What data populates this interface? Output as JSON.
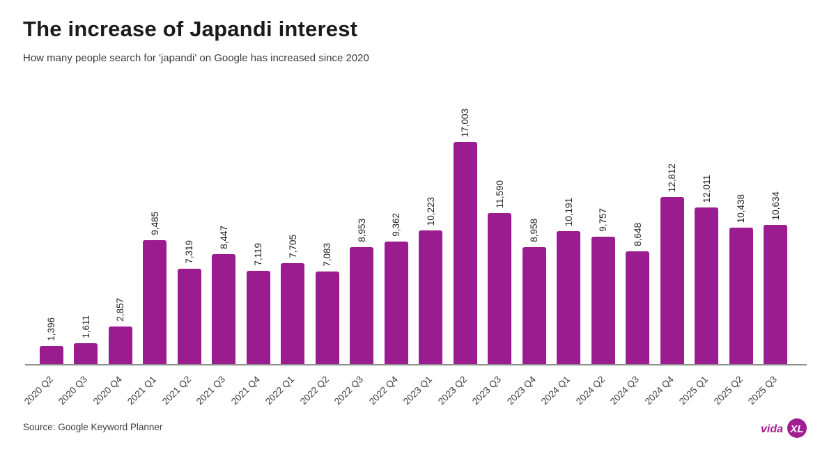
{
  "header": {
    "title": "The increase of Japandi interest",
    "subtitle": "How many people search for 'japandi' on Google has increased since 2020"
  },
  "footer": {
    "source": "Source: Google Keyword Planner",
    "logo_text": "vida",
    "logo_monogram": "XL"
  },
  "colors": {
    "bar": "#9B1C8F",
    "logo": "#A01D92",
    "axis": "#909090"
  },
  "chart_data": {
    "type": "bar",
    "title": "The increase of Japandi interest",
    "xlabel": "",
    "ylabel": "",
    "ylim": [
      0,
      17003
    ],
    "grid": false,
    "legend": false,
    "bar_color": "#9B1C8F",
    "categories": [
      "2020 Q2",
      "2020 Q3",
      "2020 Q4",
      "2021 Q1",
      "2021 Q2",
      "2021 Q3",
      "2021 Q4",
      "2022 Q1",
      "2022 Q2",
      "2022 Q3",
      "2022 Q4",
      "2023 Q1",
      "2023 Q2",
      "2023 Q3",
      "2023 Q4",
      "2024 Q1",
      "2024 Q2",
      "2024 Q3",
      "2024 Q4",
      "2025 Q1",
      "2025 Q2",
      "2025 Q3"
    ],
    "values": [
      1396,
      1611,
      2857,
      9485,
      7319,
      8447,
      7119,
      7705,
      7083,
      8953,
      9362,
      10223,
      17003,
      11590,
      8958,
      10191,
      9757,
      8648,
      12812,
      12011,
      10438,
      10634
    ],
    "value_labels": [
      "1,396",
      "1,611",
      "2,857",
      "9,485",
      "7,319",
      "8,447",
      "7,119",
      "7,705",
      "7,083",
      "8,953",
      "9,362",
      "10,223",
      "17,003",
      "11,590",
      "8,958",
      "10,191",
      "9,757",
      "8,648",
      "12,812",
      "12,011",
      "10,438",
      "10,634"
    ]
  }
}
